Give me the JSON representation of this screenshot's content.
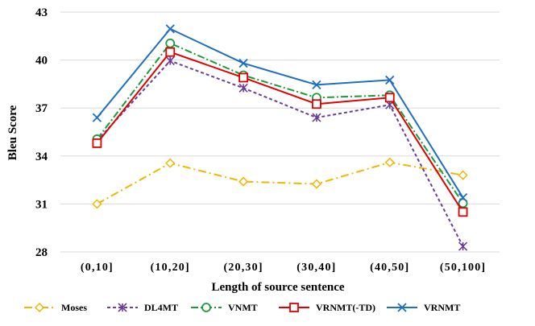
{
  "chart_data": {
    "type": "line",
    "xlabel": "Length of source sentence",
    "ylabel": "Bleu Score",
    "categories": [
      "(0,10]",
      "(10,20]",
      "(20,30]",
      "(30,40]",
      "(40,50]",
      "(50,100]"
    ],
    "ylim": [
      28,
      43
    ],
    "yticks": [
      28,
      31,
      34,
      37,
      40,
      43
    ],
    "grid": true,
    "legend_position": "bottom",
    "series": [
      {
        "name": "Moses",
        "values": [
          31.0,
          33.55,
          32.4,
          32.25,
          33.6,
          32.8
        ],
        "color": "#f2b600",
        "dash": "10 4 2 4",
        "marker": "diamond"
      },
      {
        "name": "DL4MT",
        "values": [
          34.95,
          39.95,
          38.25,
          36.4,
          37.2,
          28.35
        ],
        "color": "#6a3d9a",
        "dash": "4 3",
        "marker": "star"
      },
      {
        "name": "VNMT",
        "values": [
          35.05,
          41.05,
          39.05,
          37.65,
          37.8,
          31.05
        ],
        "color": "#1a9a3a",
        "dash": "9 3 2 3",
        "marker": "circle"
      },
      {
        "name": "VRNMT(-TD)",
        "values": [
          34.8,
          40.5,
          38.9,
          37.25,
          37.65,
          30.5
        ],
        "color": "#e00000",
        "dash": "",
        "marker": "square"
      },
      {
        "name": "VRNMT",
        "values": [
          36.4,
          41.95,
          39.8,
          38.45,
          38.75,
          31.4
        ],
        "color": "#1f6fbf",
        "dash": "",
        "marker": "x"
      }
    ]
  }
}
